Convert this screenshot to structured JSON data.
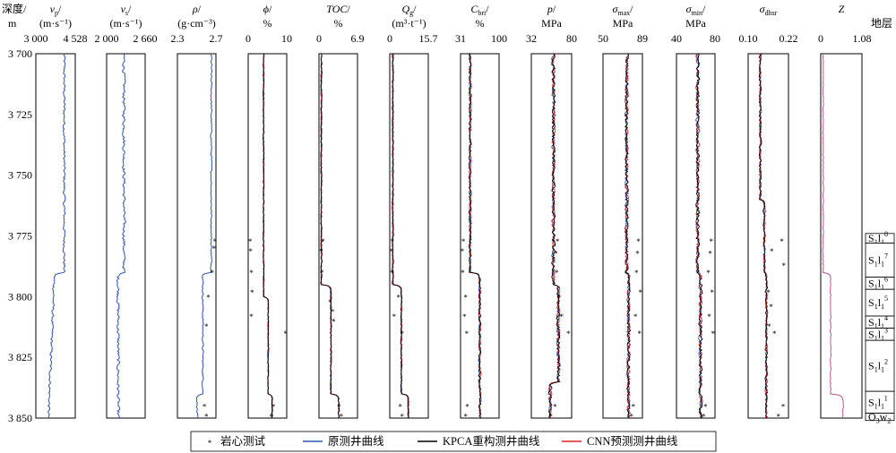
{
  "chart_data": {
    "type": "line",
    "depth_header": {
      "line1": "深度/",
      "line2": "m"
    },
    "depth_axis": {
      "range": [
        3700,
        3850
      ],
      "reversed": true,
      "ticks": [
        {
          "v": 3700,
          "label": "3 700"
        },
        {
          "v": 3725,
          "label": "3 725"
        },
        {
          "v": 3750,
          "label": "3 750"
        },
        {
          "v": 3775,
          "label": "3 775"
        },
        {
          "v": 3800,
          "label": "3 800"
        },
        {
          "v": 3825,
          "label": "3 825"
        },
        {
          "v": 3850,
          "label": "3 850"
        }
      ]
    },
    "tracks": [
      {
        "id": "vp",
        "name": "v",
        "sub": "p",
        "unit": "(m·s⁻¹)",
        "range": [
          3000,
          4528
        ],
        "range_labels": [
          "3 000",
          "4 528"
        ]
      },
      {
        "id": "vs",
        "name": "v",
        "sub": "s",
        "unit": "(m·s⁻¹)",
        "range": [
          2000,
          2660
        ],
        "range_labels": [
          "2 000",
          "2 660"
        ]
      },
      {
        "id": "rho",
        "name": "ρ",
        "sub": "",
        "unit": "(g·cm⁻³)",
        "range": [
          2.3,
          2.7
        ],
        "range_labels": [
          "2.3",
          "2.7"
        ]
      },
      {
        "id": "phi",
        "name": "ϕ",
        "sub": "",
        "unit": "%",
        "range": [
          0,
          10
        ],
        "range_labels": [
          "0",
          "10"
        ]
      },
      {
        "id": "toc",
        "name": "TOC",
        "sub": "",
        "unit": "%",
        "range": [
          0,
          6.9
        ],
        "range_labels": [
          "0",
          "6.9"
        ]
      },
      {
        "id": "qg",
        "name": "Q",
        "sub": "g",
        "unit": "(m³·t⁻¹)",
        "range": [
          0,
          15.7
        ],
        "range_labels": [
          "0",
          "15.7"
        ]
      },
      {
        "id": "cbri",
        "name": "C",
        "sub": "bri",
        "unit": "%",
        "range": [
          31,
          100
        ],
        "range_labels": [
          "31",
          "100"
        ]
      },
      {
        "id": "p",
        "name": "p",
        "sub": "",
        "unit": "MPa",
        "range": [
          32,
          80
        ],
        "range_labels": [
          "32",
          "80"
        ]
      },
      {
        "id": "smax",
        "name": "σ",
        "sub": "max",
        "unit": "MPa",
        "range": [
          50,
          89
        ],
        "range_labels": [
          "50",
          "89"
        ]
      },
      {
        "id": "smin",
        "name": "σ",
        "sub": "min",
        "unit": "MPa",
        "range": [
          40,
          80
        ],
        "range_labels": [
          "40",
          "80"
        ]
      },
      {
        "id": "sdh",
        "name": "σ",
        "sub": "dhsr",
        "unit": "",
        "range": [
          0.1,
          0.22
        ],
        "range_labels": [
          "0.10",
          "0.22"
        ]
      },
      {
        "id": "z",
        "name": "Z",
        "sub": "",
        "unit": "",
        "range": [
          0,
          1.08
        ],
        "range_labels": [
          "0",
          "1.08"
        ]
      }
    ],
    "strata_header": "地层",
    "strata": [
      {
        "label_main": "S",
        "sub1": "1",
        "mid": "l",
        "sub2": "1",
        "sup": "8",
        "top": 3774,
        "base": 3778
      },
      {
        "label_main": "S",
        "sub1": "1",
        "mid": "l",
        "sub2": "1",
        "sup": "7",
        "top": 3778,
        "base": 3792
      },
      {
        "label_main": "S",
        "sub1": "1",
        "mid": "l",
        "sub2": "1",
        "sup": "6",
        "top": 3792,
        "base": 3797
      },
      {
        "label_main": "S",
        "sub1": "1",
        "mid": "l",
        "sub2": "1",
        "sup": "5",
        "top": 3797,
        "base": 3808
      },
      {
        "label_main": "S",
        "sub1": "1",
        "mid": "l",
        "sub2": "1",
        "sup": "4",
        "top": 3808,
        "base": 3813
      },
      {
        "label_main": "S",
        "sub1": "1",
        "mid": "l",
        "sub2": "1",
        "sup": "3",
        "top": 3813,
        "base": 3818
      },
      {
        "label_main": "S",
        "sub1": "1",
        "mid": "l",
        "sub2": "1",
        "sup": "2",
        "top": 3818,
        "base": 3839
      },
      {
        "label_main": "S",
        "sub1": "1",
        "mid": "l",
        "sub2": "1",
        "sup": "1",
        "top": 3839,
        "base": 3848
      },
      {
        "label_main": "O",
        "sub1": "3",
        "mid": "w",
        "sub2": "2",
        "sup": "",
        "top": 3848,
        "base": 3851
      }
    ],
    "legend": [
      {
        "label": "岩心测试",
        "kind": "marker",
        "color": "#e8353a"
      },
      {
        "label": "原测井曲线",
        "kind": "line",
        "color": "#2f56b0"
      },
      {
        "label": "KPCA重构测井曲线",
        "kind": "line",
        "color": "#000000"
      },
      {
        "label": "CNN预测测井曲线",
        "kind": "line",
        "color": "#e02020"
      }
    ],
    "colors": {
      "original": "#2f56b0",
      "kpca": "#000000",
      "cnn": "#e02020",
      "core": "#e8353a",
      "z": "#c0549a"
    },
    "core_tests": {
      "rho": [
        [
          3777,
          2.69
        ],
        [
          3780,
          2.68
        ],
        [
          3790,
          2.66
        ],
        [
          3800,
          2.62
        ],
        [
          3812,
          2.6
        ],
        [
          3845,
          2.58
        ],
        [
          3849,
          2.6
        ]
      ],
      "phi": [
        [
          3777,
          0.5
        ],
        [
          3781,
          0.6
        ],
        [
          3790,
          0.8
        ],
        [
          3798,
          1.0
        ],
        [
          3808,
          0.8
        ],
        [
          3815,
          9.7
        ],
        [
          3845,
          6.5
        ],
        [
          3849,
          6.0
        ]
      ],
      "toc": [
        [
          3777,
          0.7
        ],
        [
          3781,
          0.4
        ],
        [
          3790,
          0.5
        ],
        [
          3802,
          2.0
        ],
        [
          3806,
          2.4
        ],
        [
          3810,
          2.6
        ],
        [
          3845,
          3.6
        ],
        [
          3849,
          4.0
        ]
      ],
      "qg": [
        [
          3777,
          1.0
        ],
        [
          3781,
          0.5
        ],
        [
          3790,
          0.9
        ],
        [
          3800,
          3.5
        ],
        [
          3808,
          1.8
        ],
        [
          3815,
          5.0
        ],
        [
          3845,
          4.3
        ],
        [
          3849,
          5.0
        ]
      ],
      "cbri": [
        [
          3777,
          36
        ],
        [
          3781,
          34
        ],
        [
          3790,
          35
        ],
        [
          3800,
          40
        ],
        [
          3808,
          38
        ],
        [
          3815,
          42
        ],
        [
          3845,
          43
        ],
        [
          3849,
          40
        ]
      ],
      "p": [
        [
          3777,
          63
        ],
        [
          3782,
          61
        ],
        [
          3790,
          62
        ],
        [
          3800,
          65
        ],
        [
          3808,
          68
        ],
        [
          3815,
          76
        ],
        [
          3845,
          60
        ],
        [
          3849,
          55
        ]
      ],
      "smax": [
        [
          3777,
          85
        ],
        [
          3782,
          84
        ],
        [
          3790,
          83
        ],
        [
          3798,
          87
        ],
        [
          3808,
          82
        ],
        [
          3815,
          86
        ],
        [
          3845,
          80
        ],
        [
          3849,
          78
        ]
      ],
      "smin": [
        [
          3777,
          76
        ],
        [
          3782,
          75
        ],
        [
          3790,
          73
        ],
        [
          3798,
          77
        ],
        [
          3808,
          74
        ],
        [
          3815,
          78
        ],
        [
          3845,
          70
        ],
        [
          3849,
          68
        ]
      ],
      "sdh": [
        [
          3777,
          0.2
        ],
        [
          3781,
          0.17
        ],
        [
          3787,
          0.206
        ],
        [
          3798,
          0.16
        ],
        [
          3804,
          0.168
        ],
        [
          3812,
          0.162
        ],
        [
          3815,
          0.178
        ],
        [
          3845,
          0.204
        ],
        [
          3849,
          0.19
        ]
      ]
    }
  }
}
